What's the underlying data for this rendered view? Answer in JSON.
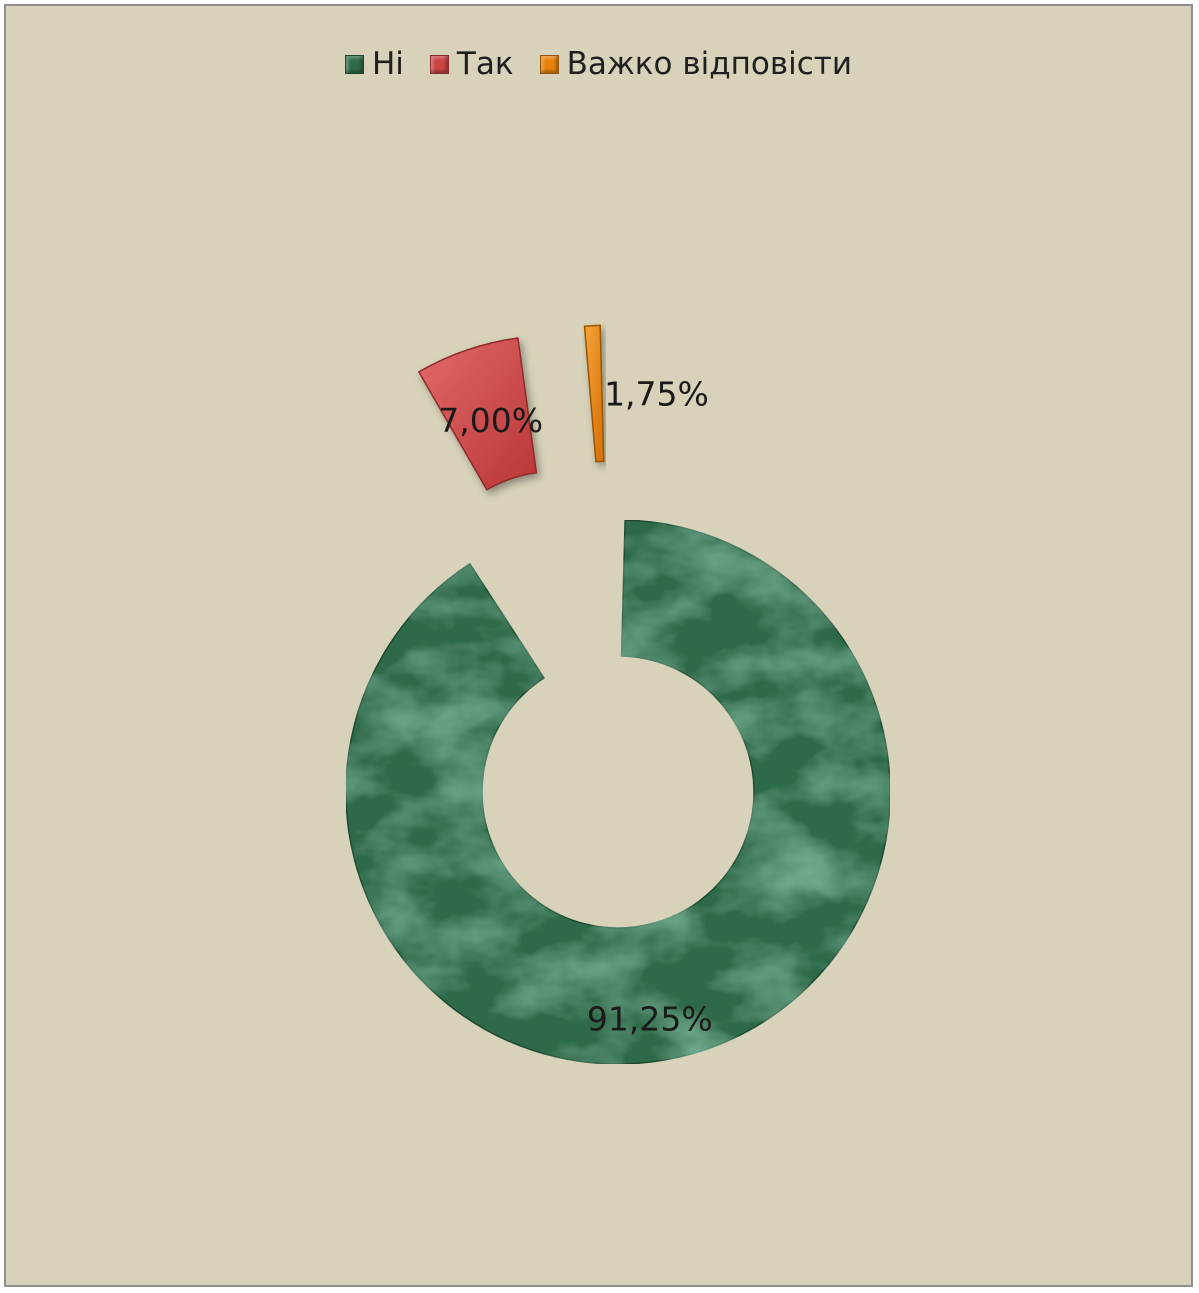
{
  "chart_data": {
    "type": "doughnut",
    "categories": [
      "Ні",
      "Так",
      "Важко відповісти"
    ],
    "values": [
      91.25,
      7.0,
      1.75
    ],
    "labels": [
      "91,25%",
      "7,00%",
      "1,75%"
    ],
    "colors": [
      "#2f6b48",
      "#cc4444",
      "#e8820c"
    ],
    "legend_position": "top",
    "exploded": [
      false,
      true,
      true
    ]
  }
}
